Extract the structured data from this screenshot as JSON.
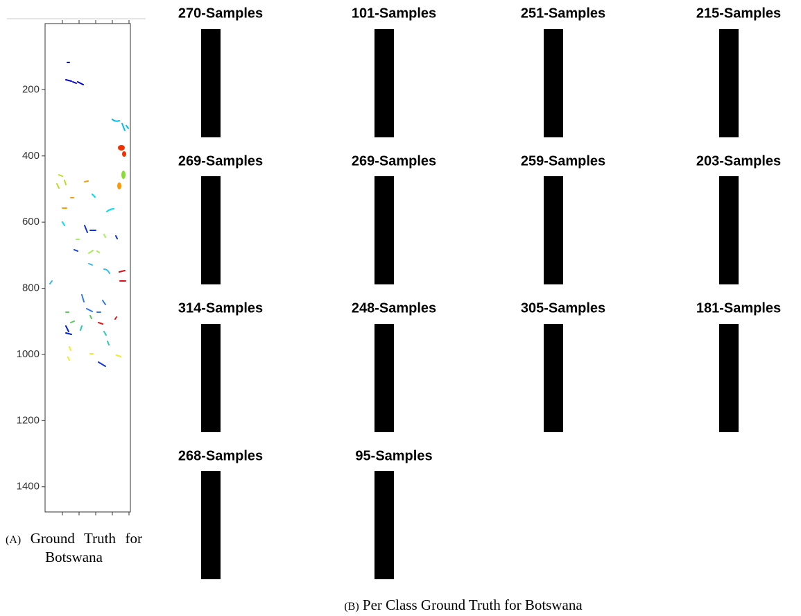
{
  "panel_a": {
    "ylim": [
      0,
      1476
    ],
    "yticks": [
      200,
      400,
      600,
      800,
      1000,
      1200,
      1400
    ],
    "caption_label": "(A)",
    "caption": "Ground Truth for Botswana"
  },
  "panel_b": {
    "panels": [
      "270-Samples",
      "101-Samples",
      "251-Samples",
      "215-Samples",
      "269-Samples",
      "269-Samples",
      "259-Samples",
      "203-Samples",
      "314-Samples",
      "248-Samples",
      "305-Samples",
      "181-Samples",
      "268-Samples",
      "95-Samples"
    ],
    "caption_label": "(B)",
    "caption": "Per Class Ground Truth for Botswana"
  }
}
